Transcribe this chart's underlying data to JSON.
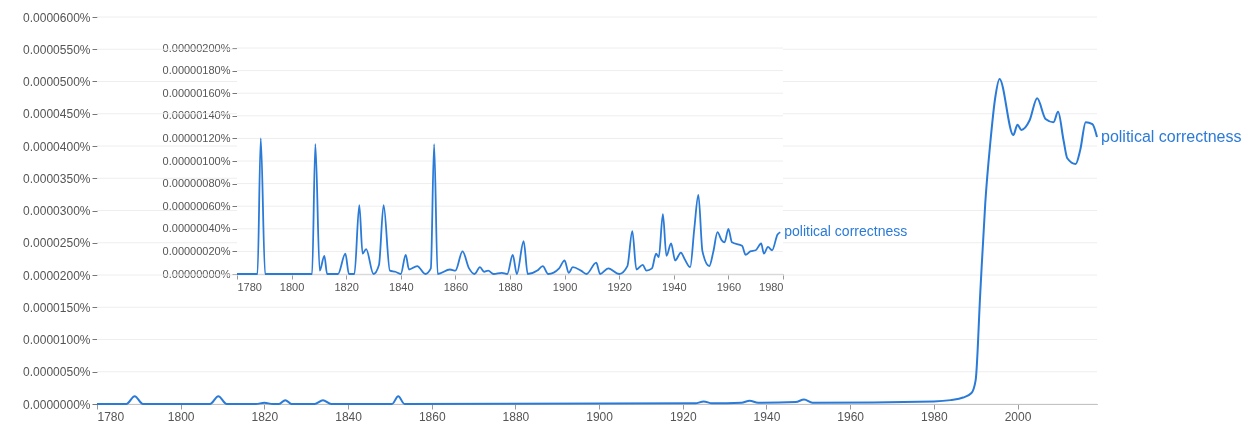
{
  "chart_data": [
    {
      "type": "line",
      "xlim": [
        1780,
        2019
      ],
      "ylim": [
        0,
        6e-05
      ],
      "grid": "y",
      "xticks": [
        1780,
        1800,
        1820,
        1840,
        1860,
        1880,
        1900,
        1920,
        1940,
        1960,
        1980,
        2000
      ],
      "yticks": [
        {
          "value": 0,
          "label": "0.0000000%"
        },
        {
          "value": 5e-06,
          "label": "0.0000050%"
        },
        {
          "value": 1e-05,
          "label": "0.0000100%"
        },
        {
          "value": 1.5e-05,
          "label": "0.0000150%"
        },
        {
          "value": 2e-05,
          "label": "0.0000200%"
        },
        {
          "value": 2.5e-05,
          "label": "0.0000250%"
        },
        {
          "value": 3e-05,
          "label": "0.0000300%"
        },
        {
          "value": 3.5e-05,
          "label": "0.0000350%"
        },
        {
          "value": 4e-05,
          "label": "0.0000400%"
        },
        {
          "value": 4.5e-05,
          "label": "0.0000450%"
        },
        {
          "value": 5e-05,
          "label": "0.0000500%"
        },
        {
          "value": 5.5e-05,
          "label": "0.0000550%"
        },
        {
          "value": 6e-05,
          "label": "0.0000600%"
        }
      ],
      "x": [
        1780,
        1787,
        1789,
        1791,
        1807,
        1809,
        1811,
        1818,
        1820,
        1822,
        1823.5,
        1825,
        1826.5,
        1832,
        1834,
        1836,
        1850.5,
        1852,
        1853.5,
        1923,
        1925,
        1927,
        1934,
        1936,
        1938,
        1947,
        1949,
        1951,
        1980,
        1984,
        1987,
        1989,
        1990,
        1991.1,
        1992.3,
        1993.5,
        1994.7,
        1995.7,
        1999,
        2000,
        2000.9,
        2002.9,
        2004.7,
        2006.7,
        2008.6,
        2009.7,
        2011,
        2011.9,
        2013.9,
        2015,
        2016.3,
        2017.9,
        2019
      ],
      "series": [
        {
          "name": "political correctness",
          "color": "#2a7ad8",
          "values": [
            0,
            0,
            1.2e-06,
            0,
            0,
            1.2e-06,
            0,
            0,
            2e-07,
            0,
            0,
            6e-07,
            0,
            0,
            6e-07,
            0,
            0,
            1.2e-06,
            0,
            1e-07,
            4e-07,
            1e-07,
            2e-07,
            5e-07,
            2e-07,
            3e-07,
            7e-07,
            2e-07,
            4e-07,
            6e-07,
            1e-06,
            1.7e-06,
            3.7e-06,
            1.72e-05,
            3.12e-05,
            4.05e-05,
            4.76e-05,
            5.04e-05,
            4.17e-05,
            4.33e-05,
            4.25e-05,
            4.4e-05,
            4.74e-05,
            4.42e-05,
            4.37e-05,
            4.53e-05,
            4.09e-05,
            3.81e-05,
            3.72e-05,
            3.94e-05,
            4.37e-05,
            4.34e-05,
            4.14e-05
          ]
        }
      ]
    },
    {
      "type": "line",
      "xlim": [
        1780,
        1980
      ],
      "ylim": [
        0,
        2e-06
      ],
      "grid": "y",
      "xticks": [
        1780,
        1800,
        1820,
        1840,
        1860,
        1880,
        1900,
        1920,
        1940,
        1960,
        1980
      ],
      "yticks": [
        {
          "value": 0,
          "label": "0.00000000%"
        },
        {
          "value": 2e-07,
          "label": "0.00000020%"
        },
        {
          "value": 4e-07,
          "label": "0.00000040%"
        },
        {
          "value": 6e-07,
          "label": "0.00000060%"
        },
        {
          "value": 8e-07,
          "label": "0.00000080%"
        },
        {
          "value": 1e-06,
          "label": "0.00000100%"
        },
        {
          "value": 1.2e-06,
          "label": "0.00000120%"
        },
        {
          "value": 1.4e-06,
          "label": "0.00000140%"
        },
        {
          "value": 1.6e-06,
          "label": "0.00000160%"
        },
        {
          "value": 1.8e-06,
          "label": "0.00000180%"
        },
        {
          "value": 2e-06,
          "label": "0.00000200%"
        }
      ],
      "x": [
        1780,
        1787.5,
        1788.7,
        1790.3,
        1807.5,
        1808.7,
        1810.3,
        1812,
        1813,
        1817,
        1819.7,
        1821,
        1823,
        1824.8,
        1826,
        1827.3,
        1830,
        1832,
        1833.7,
        1836,
        1838,
        1840,
        1841.8,
        1843,
        1846,
        1849,
        1851,
        1852.2,
        1853.5,
        1858,
        1860,
        1862.6,
        1865,
        1867,
        1869,
        1870.5,
        1872,
        1874,
        1877,
        1879,
        1881,
        1882.5,
        1885,
        1886.5,
        1890,
        1892,
        1894,
        1898,
        1900,
        1901.5,
        1903,
        1906,
        1908,
        1911.6,
        1913,
        1916,
        1920,
        1923,
        1924.8,
        1926.3,
        1928.6,
        1930,
        1932,
        1933.5,
        1934.5,
        1936,
        1937.3,
        1939,
        1940.5,
        1942.6,
        1944,
        1946,
        1947.5,
        1949,
        1950.5,
        1953,
        1954.5,
        1956,
        1957.5,
        1958.6,
        1960,
        1961.3,
        1965,
        1966.3,
        1968,
        1970,
        1972,
        1973,
        1974.5,
        1976,
        1978,
        1979
      ],
      "series": [
        {
          "name": "political correctness",
          "color": "#2a7ad8",
          "values": [
            0,
            0,
            1.2e-06,
            0,
            0,
            1.15e-06,
            3e-08,
            1.6e-07,
            0,
            0,
            1.8e-07,
            0,
            0,
            6.1e-07,
            1.8e-07,
            2.2e-07,
            0,
            8e-08,
            6.1e-07,
            3e-08,
            2e-08,
            0,
            1.7e-07,
            4e-08,
            7e-08,
            0,
            5e-08,
            1.15e-06,
            0,
            4e-08,
            3e-08,
            2e-07,
            5e-08,
            0,
            6e-08,
            2e-08,
            3e-08,
            0,
            1e-08,
            0,
            1.7e-07,
            0,
            2.9e-07,
            0,
            3e-08,
            7e-08,
            0,
            5e-08,
            1.2e-07,
            1e-08,
            6e-08,
            3e-08,
            0,
            1e-07,
            0,
            5e-08,
            0,
            7e-08,
            3.8e-07,
            4e-08,
            8e-08,
            3e-08,
            5e-08,
            1.8e-07,
            1.5e-07,
            5.3e-07,
            1.6e-07,
            2.7e-07,
            1.2e-07,
            1.9e-07,
            1.3e-07,
            6e-08,
            4e-07,
            7e-07,
            2e-07,
            7e-08,
            2e-07,
            3.7e-07,
            3e-07,
            2.8e-07,
            4e-07,
            2.8e-07,
            2.5e-07,
            1.7e-07,
            2e-07,
            2.1e-07,
            2.7e-07,
            1.8e-07,
            2.4e-07,
            2.1e-07,
            3.5e-07,
            3.7e-07
          ]
        }
      ]
    }
  ]
}
